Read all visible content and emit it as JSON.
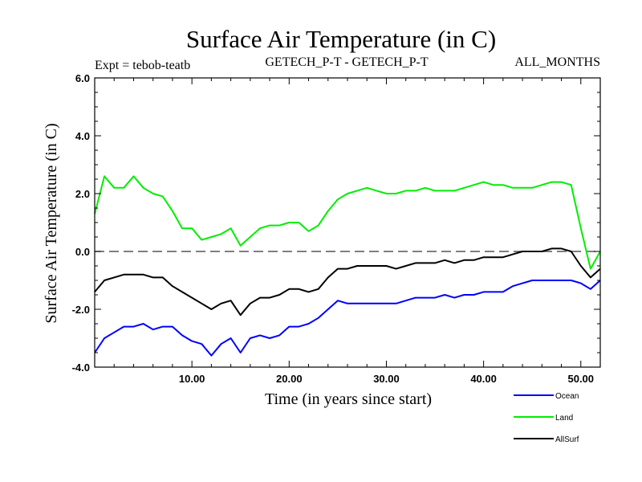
{
  "header": {
    "title": "Surface Air Temperature (in C)",
    "expt": "Expt = tebob-teatb",
    "comparison": "GETECH_P-T - GETECH_P-T",
    "months": "ALL_MONTHS"
  },
  "colors": {
    "ocean": "#0000ff",
    "land": "#00ee00",
    "allsurf": "#000000",
    "zero_line": "#555555"
  },
  "chart_data": {
    "type": "line",
    "title": "Surface Air Temperature (in C)",
    "xlabel": "Time (in years since start)",
    "ylabel": "Surface Air Temperature (in C)",
    "xlim": [
      0,
      52
    ],
    "ylim": [
      -4,
      6
    ],
    "x_tick_labels": [
      "10.00",
      "20.00",
      "30.00",
      "40.00",
      "50.00"
    ],
    "x_ticks": [
      10,
      20,
      30,
      40,
      50
    ],
    "y_tick_labels": [
      "-4.0",
      "-2.0",
      "0.0",
      "2.0",
      "4.0",
      "6.0"
    ],
    "y_ticks": [
      -4,
      -2,
      0,
      2,
      4,
      6
    ],
    "reference_line_y": 0,
    "legend_position": "bottom-right",
    "series": [
      {
        "name": "Ocean",
        "color": "#0000ff",
        "x": [
          0,
          1,
          2,
          3,
          4,
          5,
          6,
          7,
          8,
          9,
          10,
          11,
          12,
          13,
          14,
          15,
          16,
          17,
          18,
          19,
          20,
          21,
          22,
          23,
          24,
          25,
          26,
          27,
          28,
          29,
          30,
          31,
          32,
          33,
          34,
          35,
          36,
          37,
          38,
          39,
          40,
          41,
          42,
          43,
          44,
          45,
          46,
          47,
          48,
          49,
          50,
          51,
          52
        ],
        "values": [
          -3.5,
          -3.0,
          -2.8,
          -2.6,
          -2.6,
          -2.5,
          -2.7,
          -2.6,
          -2.6,
          -2.9,
          -3.1,
          -3.2,
          -3.6,
          -3.2,
          -3.0,
          -3.5,
          -3.0,
          -2.9,
          -3.0,
          -2.9,
          -2.6,
          -2.6,
          -2.5,
          -2.3,
          -2.0,
          -1.7,
          -1.8,
          -1.8,
          -1.8,
          -1.8,
          -1.8,
          -1.8,
          -1.7,
          -1.6,
          -1.6,
          -1.6,
          -1.5,
          -1.6,
          -1.5,
          -1.5,
          -1.4,
          -1.4,
          -1.4,
          -1.2,
          -1.1,
          -1.0,
          -1.0,
          -1.0,
          -1.0,
          -1.0,
          -1.1,
          -1.3,
          -1.0
        ]
      },
      {
        "name": "Land",
        "color": "#00ee00",
        "x": [
          0,
          1,
          2,
          3,
          4,
          5,
          6,
          7,
          8,
          9,
          10,
          11,
          12,
          13,
          14,
          15,
          16,
          17,
          18,
          19,
          20,
          21,
          22,
          23,
          24,
          25,
          26,
          27,
          28,
          29,
          30,
          31,
          32,
          33,
          34,
          35,
          36,
          37,
          38,
          39,
          40,
          41,
          42,
          43,
          44,
          45,
          46,
          47,
          48,
          49,
          50,
          51,
          52
        ],
        "values": [
          1.3,
          2.6,
          2.2,
          2.2,
          2.6,
          2.2,
          2.0,
          1.9,
          1.4,
          0.8,
          0.8,
          0.4,
          0.5,
          0.6,
          0.8,
          0.2,
          0.5,
          0.8,
          0.9,
          0.9,
          1.0,
          1.0,
          0.7,
          0.9,
          1.4,
          1.8,
          2.0,
          2.1,
          2.2,
          2.1,
          2.0,
          2.0,
          2.1,
          2.1,
          2.2,
          2.1,
          2.1,
          2.1,
          2.2,
          2.3,
          2.4,
          2.3,
          2.3,
          2.2,
          2.2,
          2.2,
          2.3,
          2.4,
          2.4,
          2.3,
          0.8,
          -0.6,
          0.0
        ]
      },
      {
        "name": "AllSurf",
        "color": "#000000",
        "x": [
          0,
          1,
          2,
          3,
          4,
          5,
          6,
          7,
          8,
          9,
          10,
          11,
          12,
          13,
          14,
          15,
          16,
          17,
          18,
          19,
          20,
          21,
          22,
          23,
          24,
          25,
          26,
          27,
          28,
          29,
          30,
          31,
          32,
          33,
          34,
          35,
          36,
          37,
          38,
          39,
          40,
          41,
          42,
          43,
          44,
          45,
          46,
          47,
          48,
          49,
          50,
          51,
          52
        ],
        "values": [
          -1.4,
          -1.0,
          -0.9,
          -0.8,
          -0.8,
          -0.8,
          -0.9,
          -0.9,
          -1.2,
          -1.4,
          -1.6,
          -1.8,
          -2.0,
          -1.8,
          -1.7,
          -2.2,
          -1.8,
          -1.6,
          -1.6,
          -1.5,
          -1.3,
          -1.3,
          -1.4,
          -1.3,
          -0.9,
          -0.6,
          -0.6,
          -0.5,
          -0.5,
          -0.5,
          -0.5,
          -0.6,
          -0.5,
          -0.4,
          -0.4,
          -0.4,
          -0.3,
          -0.4,
          -0.3,
          -0.3,
          -0.2,
          -0.2,
          -0.2,
          -0.1,
          0.0,
          0.0,
          0.0,
          0.1,
          0.1,
          0.0,
          -0.5,
          -0.9,
          -0.6
        ]
      }
    ]
  }
}
